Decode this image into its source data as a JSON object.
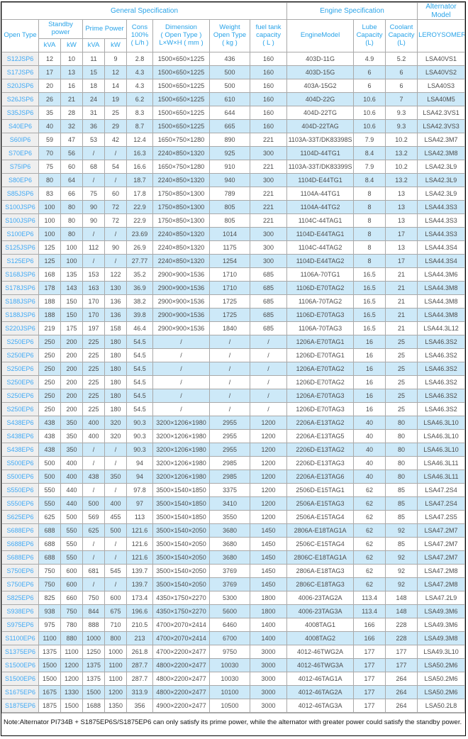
{
  "table": {
    "sections": {
      "general": "General Specification",
      "engine": "Engine Specification",
      "alternator": "Alternator Model"
    },
    "header": {
      "open_type": "Open Type",
      "standby": "Standby\npower",
      "prime": "Prime Power",
      "kva1": "kVA",
      "kw1": "kW",
      "kva2": "kVA",
      "kw2": "kW",
      "cons": "Cons\n100%\n( L/h )",
      "dimension": "Dimension\n( Open Type )\nL×W×H ( mm )",
      "weight": "Weight\nOpen Type\n( kg )",
      "fuel": "fuel tank\ncapacity\n( L )",
      "engine_model": "EngineModel",
      "lube": "Lube\nCapacity\n(L)",
      "coolant": "Coolant\nCapacity\n(L)",
      "leroysomer": "LEROYSOMER"
    },
    "col_names": [
      "model-link",
      "standby-kva",
      "standby-kw",
      "prime-kva",
      "prime-kw",
      "cons-100pct",
      "dimension",
      "weight",
      "fuel-tank-capacity",
      "engine-model",
      "lube-capacity",
      "coolant-capacity",
      "alternator-model"
    ],
    "rows": [
      [
        "S12JSP6",
        "12",
        "10",
        "11",
        "9",
        "2.8",
        "1500×650×1225",
        "436",
        "160",
        "403D-11G",
        "4.9",
        "5.2",
        "LSA40VS1"
      ],
      [
        "S17JSP6",
        "17",
        "13",
        "15",
        "12",
        "4.3",
        "1500×650×1225",
        "500",
        "160",
        "403D-15G",
        "6",
        "6",
        "LSA40VS2"
      ],
      [
        "S20JSP6",
        "20",
        "16",
        "18",
        "14",
        "4.3",
        "1500×650×1225",
        "500",
        "160",
        "403A-15G2",
        "6",
        "6",
        "LSA40S3"
      ],
      [
        "S26JSP6",
        "26",
        "21",
        "24",
        "19",
        "6.2",
        "1500×650×1225",
        "610",
        "160",
        "404D-22G",
        "10.6",
        "7",
        "LSA40M5"
      ],
      [
        "S35JSP6",
        "35",
        "28",
        "31",
        "25",
        "8.3",
        "1500×650×1225",
        "644",
        "160",
        "404D-22TG",
        "10.6",
        "9.3",
        "LSA42.3VS1"
      ],
      [
        "S40EP6",
        "40",
        "32",
        "36",
        "29",
        "8.7",
        "1500×650×1225",
        "665",
        "160",
        "404D-22TAG",
        "10.6",
        "9.3",
        "LSA42.3VS3"
      ],
      [
        "S60IP6",
        "59",
        "47",
        "53",
        "42",
        "12.4",
        "1650×750×1280",
        "890",
        "221",
        "1103A-33T/DK83398S",
        "7.9",
        "10.2",
        "LSA42.3M7"
      ],
      [
        "S70EP6",
        "70",
        "56",
        "/",
        "/",
        "16.3",
        "2240×850×1320",
        "925",
        "300",
        "1104D-44TG1",
        "8.4",
        "13.2",
        "LSA42.3M8"
      ],
      [
        "S75IP6",
        "75",
        "60",
        "68",
        "54",
        "16.6",
        "1650×750×1280",
        "910",
        "221",
        "1103A-33T/DK83399S",
        "7.9",
        "10.2",
        "LSA42.3L9"
      ],
      [
        "S80EP6",
        "80",
        "64",
        "/",
        "/",
        "18.7",
        "2240×850×1320",
        "940",
        "300",
        "1104D-E44TG1",
        "8.4",
        "13.2",
        "LSA42.3L9"
      ],
      [
        "S85JSP6",
        "83",
        "66",
        "75",
        "60",
        "17.8",
        "1750×850×1300",
        "789",
        "221",
        "1104A-44TG1",
        "8",
        "13",
        "LSA42.3L9"
      ],
      [
        "S100JSP6",
        "100",
        "80",
        "90",
        "72",
        "22.9",
        "1750×850×1300",
        "805",
        "221",
        "1104A-44TG2",
        "8",
        "13",
        "LSA44.3S3"
      ],
      [
        "S100JSP6",
        "100",
        "80",
        "90",
        "72",
        "22.9",
        "1750×850×1300",
        "805",
        "221",
        "1104C-44TAG1",
        "8",
        "13",
        "LSA44.3S3"
      ],
      [
        "S100EP6",
        "100",
        "80",
        "/",
        "/",
        "23.69",
        "2240×850×1320",
        "1014",
        "300",
        "1104D-E44TAG1",
        "8",
        "17",
        "LSA44.3S3"
      ],
      [
        "S125JSP6",
        "125",
        "100",
        "112",
        "90",
        "26.9",
        "2240×850×1320",
        "1175",
        "300",
        "1104C-44TAG2",
        "8",
        "13",
        "LSA44.3S4"
      ],
      [
        "S125EP6",
        "125",
        "100",
        "/",
        "/",
        "27.77",
        "2240×850×1320",
        "1254",
        "300",
        "1104D-E44TAG2",
        "8",
        "17",
        "LSA44.3S4"
      ],
      [
        "S168JSP6",
        "168",
        "135",
        "153",
        "122",
        "35.2",
        "2900×900×1536",
        "1710",
        "685",
        "1106A-70TG1",
        "16.5",
        "21",
        "LSA44.3M6"
      ],
      [
        "S178JSP6",
        "178",
        "143",
        "163",
        "130",
        "36.9",
        "2900×900×1536",
        "1710",
        "685",
        "1106D-E70TAG2",
        "16.5",
        "21",
        "LSA44.3M8"
      ],
      [
        "S188JSP6",
        "188",
        "150",
        "170",
        "136",
        "38.2",
        "2900×900×1536",
        "1725",
        "685",
        "1106A-70TAG2",
        "16.5",
        "21",
        "LSA44.3M8"
      ],
      [
        "S188JSP6",
        "188",
        "150",
        "170",
        "136",
        "39.8",
        "2900×900×1536",
        "1725",
        "685",
        "1106D-E70TAG3",
        "16.5",
        "21",
        "LSA44.3M8"
      ],
      [
        "S220JSP6",
        "219",
        "175",
        "197",
        "158",
        "46.4",
        "2900×900×1536",
        "1840",
        "685",
        "1106A-70TAG3",
        "16.5",
        "21",
        "LSA44.3L12"
      ],
      [
        "S250EP6",
        "250",
        "200",
        "225",
        "180",
        "54.5",
        "/",
        "/",
        "/",
        "1206A-E70TAG1",
        "16",
        "25",
        "LSA46.3S2"
      ],
      [
        "S250EP6",
        "250",
        "200",
        "225",
        "180",
        "54.5",
        "/",
        "/",
        "/",
        "1206D-E70TAG1",
        "16",
        "25",
        "LSA46.3S2"
      ],
      [
        "S250EP6",
        "250",
        "200",
        "225",
        "180",
        "54.5",
        "/",
        "/",
        "/",
        "1206A-E70TAG2",
        "16",
        "25",
        "LSA46.3S2"
      ],
      [
        "S250EP6",
        "250",
        "200",
        "225",
        "180",
        "54.5",
        "/",
        "/",
        "/",
        "1206D-E70TAG2",
        "16",
        "25",
        "LSA46.3S2"
      ],
      [
        "S250EP6",
        "250",
        "200",
        "225",
        "180",
        "54.5",
        "/",
        "/",
        "/",
        "1206A-E70TAG3",
        "16",
        "25",
        "LSA46.3S2"
      ],
      [
        "S250EP6",
        "250",
        "200",
        "225",
        "180",
        "54.5",
        "/",
        "/",
        "/",
        "1206D-E70TAG3",
        "16",
        "25",
        "LSA46.3S2"
      ],
      [
        "S438EP6",
        "438",
        "350",
        "400",
        "320",
        "90.3",
        "3200×1206×1980",
        "2955",
        "1200",
        "2206A-E13TAG2",
        "40",
        "80",
        "LSA46.3L10"
      ],
      [
        "S438EP6",
        "438",
        "350",
        "400",
        "320",
        "90.3",
        "3200×1206×1980",
        "2955",
        "1200",
        "2206A-E13TAG5",
        "40",
        "80",
        "LSA46.3L10"
      ],
      [
        "S438EP6",
        "438",
        "350",
        "/",
        "/",
        "90.3",
        "3200×1206×1980",
        "2955",
        "1200",
        "2206D-E13TAG2",
        "40",
        "80",
        "LSA46.3L10"
      ],
      [
        "S500EP6",
        "500",
        "400",
        "/",
        "/",
        "94",
        "3200×1206×1980",
        "2985",
        "1200",
        "2206D-E13TAG3",
        "40",
        "80",
        "LSA46.3L11"
      ],
      [
        "S500EP6",
        "500",
        "400",
        "438",
        "350",
        "94",
        "3200×1206×1980",
        "2985",
        "1200",
        "2206A-E13TAG6",
        "40",
        "80",
        "LSA46.3L11"
      ],
      [
        "S550EP6",
        "550",
        "440",
        "/",
        "/",
        "97.8",
        "3500×1540×1850",
        "3375",
        "1200",
        "2506D-E15TAG1",
        "62",
        "85",
        "LSA47.2S4"
      ],
      [
        "S550EP6",
        "550",
        "440",
        "500",
        "400",
        "97",
        "3500×1540×1850",
        "3410",
        "1200",
        "2506A-E15TAG3",
        "62",
        "85",
        "LSA47.2S4"
      ],
      [
        "S625EP6",
        "625",
        "500",
        "569",
        "455",
        "113",
        "3500×1540×1850",
        "3550",
        "1200",
        "2506A-E15TAG4",
        "62",
        "85",
        "LSA47.2S5"
      ],
      [
        "S688EP6",
        "688",
        "550",
        "625",
        "500",
        "121.6",
        "3500×1540×2050",
        "3680",
        "1450",
        "2806A-E18TAG1A",
        "62",
        "92",
        "LSA47.2M7"
      ],
      [
        "S688EP6",
        "688",
        "550",
        "/",
        "/",
        "121.6",
        "3500×1540×2050",
        "3680",
        "1450",
        "2506C-E15TAG4",
        "62",
        "85",
        "LSA47.2M7"
      ],
      [
        "S688EP6",
        "688",
        "550",
        "/",
        "/",
        "121.6",
        "3500×1540×2050",
        "3680",
        "1450",
        "2806C-E18TAG1A",
        "62",
        "92",
        "LSA47.2M7"
      ],
      [
        "S750EP6",
        "750",
        "600",
        "681",
        "545",
        "139.7",
        "3500×1540×2050",
        "3769",
        "1450",
        "2806A-E18TAG3",
        "62",
        "92",
        "LSA47.2M8"
      ],
      [
        "S750EP6",
        "750",
        "600",
        "/",
        "/",
        "139.7",
        "3500×1540×2050",
        "3769",
        "1450",
        "2806C-E18TAG3",
        "62",
        "92",
        "LSA47.2M8"
      ],
      [
        "S825EP6",
        "825",
        "660",
        "750",
        "600",
        "173.4",
        "4350×1750×2270",
        "5300",
        "1800",
        "4006-23TAG2A",
        "113.4",
        "148",
        "LSA47.2L9"
      ],
      [
        "S938EP6",
        "938",
        "750",
        "844",
        "675",
        "196.6",
        "4350×1750×2270",
        "5600",
        "1800",
        "4006-23TAG3A",
        "113.4",
        "148",
        "LSA49.3M6"
      ],
      [
        "S975EP6",
        "975",
        "780",
        "888",
        "710",
        "210.5",
        "4700×2070×2414",
        "6460",
        "1400",
        "4008TAG1",
        "166",
        "228",
        "LSA49.3M6"
      ],
      [
        "S1100EP6",
        "1100",
        "880",
        "1000",
        "800",
        "213",
        "4700×2070×2414",
        "6700",
        "1400",
        "4008TAG2",
        "166",
        "228",
        "LSA49.3M8"
      ],
      [
        "S1375EP6",
        "1375",
        "1100",
        "1250",
        "1000",
        "261.8",
        "4700×2200×2477",
        "9750",
        "3000",
        "4012-46TWG2A",
        "177",
        "177",
        "LSA49.3L10"
      ],
      [
        "S1500EP6",
        "1500",
        "1200",
        "1375",
        "1100",
        "287.7",
        "4800×2200×2477",
        "10030",
        "3000",
        "4012-46TWG3A",
        "177",
        "177",
        "LSA50.2M6"
      ],
      [
        "S1500EP6",
        "1500",
        "1200",
        "1375",
        "1100",
        "287.7",
        "4800×2200×2477",
        "10030",
        "3000",
        "4012-46TAG1A",
        "177",
        "264",
        "LSA50.2M6"
      ],
      [
        "S1675EP6",
        "1675",
        "1330",
        "1500",
        "1200",
        "313.9",
        "4800×2200×2477",
        "10100",
        "3000",
        "4012-46TAG2A",
        "177",
        "264",
        "LSA50.2M6"
      ],
      [
        "S1875EP6",
        "1875",
        "1500",
        "1688",
        "1350",
        "356",
        "4900×2200×2477",
        "10500",
        "3000",
        "4012-46TAG3A",
        "177",
        "264",
        "LSA50.2L8"
      ]
    ]
  },
  "note": "Note:Alternator PI734B + S1875EP6S/S1875EP6 can only satisfy its prime power, while the alternator with greater power could satisfy the standby power.",
  "colors": {
    "header_blue": "#29a3e8",
    "model_link_blue": "#3fa9f5",
    "stripe_blue": "#cde9f8",
    "first_col_gray": "#efefef",
    "grid_gray": "#a9a9a9",
    "data_text": "#4d4d4d"
  }
}
